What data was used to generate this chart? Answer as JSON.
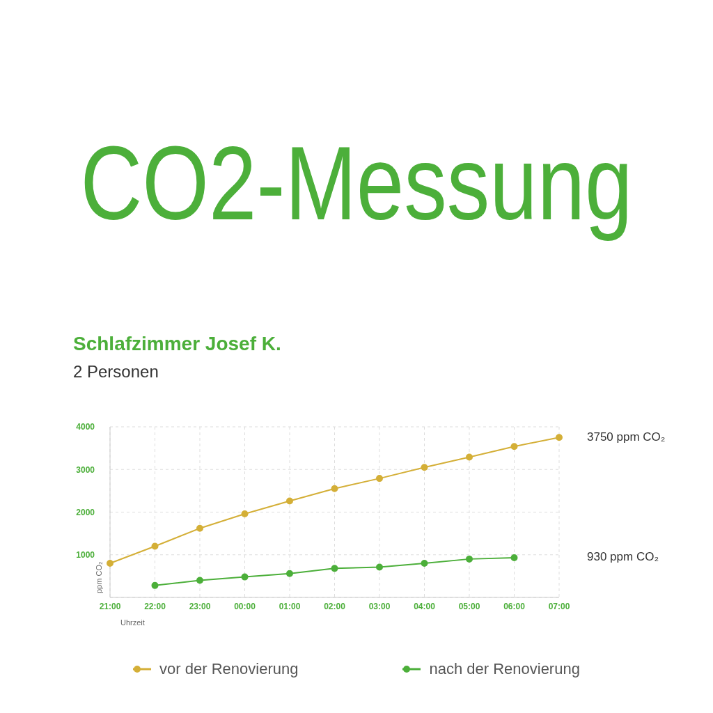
{
  "chart_data": {
    "type": "line",
    "title": "CO2-Messung",
    "subtitle": "Schlafzimmer Josef K.",
    "xlabel": "Uhrzeit",
    "ylabel": "ppm CO₂",
    "categories": [
      "21:00",
      "22:00",
      "23:00",
      "00:00",
      "01:00",
      "02:00",
      "03:00",
      "04:00",
      "05:00",
      "06:00",
      "07:00"
    ],
    "series": [
      {
        "name": "vor der Renovierung",
        "color": "#d4af37",
        "values": [
          800,
          1200,
          1620,
          1960,
          2260,
          2550,
          2790,
          3050,
          3290,
          3540,
          3750
        ]
      },
      {
        "name": "nach der Renovierung",
        "color": "#4caf3a",
        "values": [
          null,
          280,
          400,
          480,
          560,
          680,
          710,
          800,
          900,
          930,
          null
        ]
      }
    ],
    "ylim": [
      0,
      4000
    ],
    "yticks": [
      1000,
      2000,
      3000,
      4000
    ],
    "grid": true,
    "legend": "bottom",
    "marker": "circle",
    "line_style": "solid",
    "annotations": [
      "2 Personen",
      "3750 ppm CO₂",
      "930 ppm CO₂"
    ]
  }
}
